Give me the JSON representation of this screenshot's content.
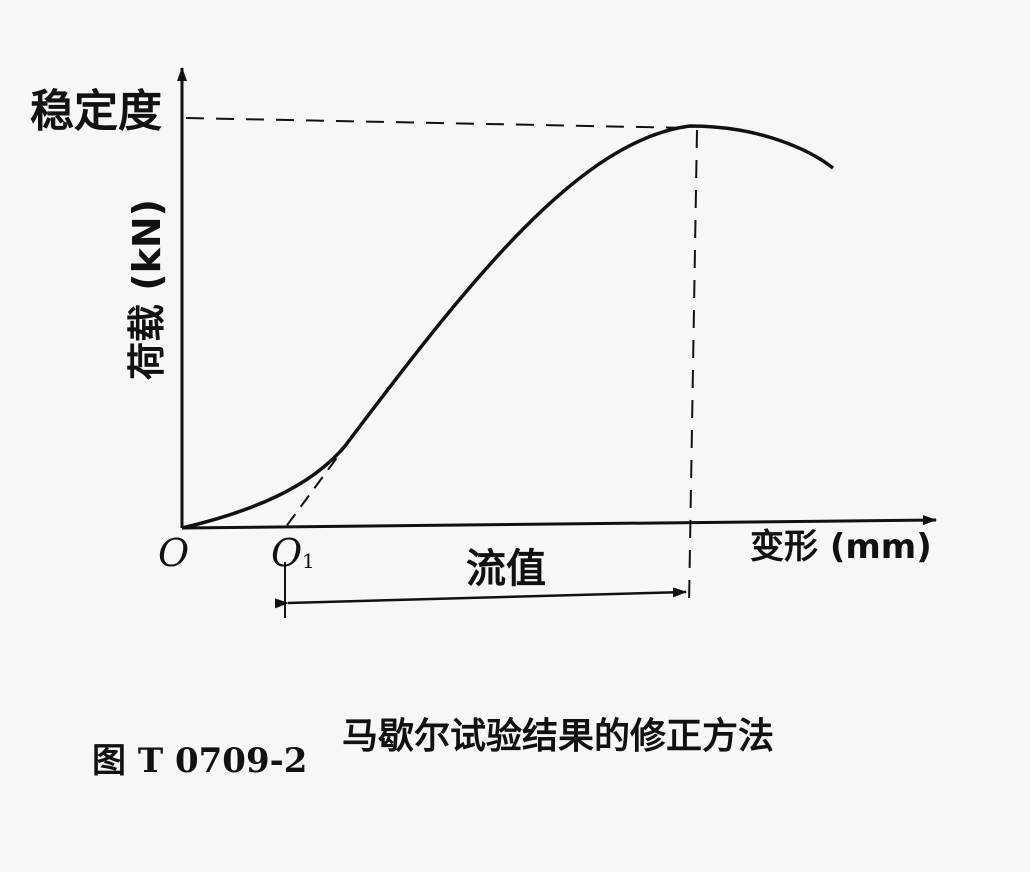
{
  "figure": {
    "y_axis_top_label": "稳定度",
    "y_axis_label": "荷载 (kN)",
    "x_axis_label": "变形 (mm)",
    "origin_label": "O",
    "corrected_origin_label": "O",
    "corrected_origin_subscript": "1",
    "span_label": "流值",
    "caption_number": "图 T 0709-2",
    "caption_text": "马歇尔试验结果的修正方法"
  }
}
